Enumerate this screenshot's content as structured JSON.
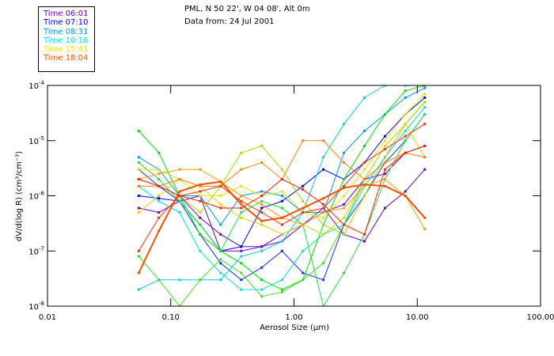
{
  "chart_data": {
    "type": "line",
    "title": "PML, N 50 22', W 04 08', Alt 0m",
    "subtitle": "Data from: 24 Jul 2001",
    "xlabel": "Aerosol Size (µm)",
    "ylabel": "dV/d(log R) (cm³/cm⁻³)",
    "xscale": "log",
    "yscale": "log",
    "xlim": [
      0.01,
      100
    ],
    "ylim": [
      1e-08,
      0.0001
    ],
    "xticks": [
      "0.01",
      "0.10",
      "1.00",
      "10.00",
      "100.00"
    ],
    "xtick_values": [
      0.01,
      0.1,
      1,
      10,
      100
    ],
    "yticks": [
      {
        "base": "10",
        "exp": "-4",
        "value": 0.0001
      },
      {
        "base": "10",
        "exp": "-5",
        "value": 1e-05
      },
      {
        "base": "10",
        "exp": "-6",
        "value": 1e-06
      },
      {
        "base": "10",
        "exp": "-7",
        "value": 1e-07
      },
      {
        "base": "10",
        "exp": "-8",
        "value": 1e-08
      }
    ],
    "legend_position": "top-left",
    "legend": [
      {
        "label": "Time 06:01",
        "color": "#6a00c8"
      },
      {
        "label": "Time 07:10",
        "color": "#0000ff"
      },
      {
        "label": "Time 08:31",
        "color": "#0096ff"
      },
      {
        "label": "Time 10:16",
        "color": "#00e6d2"
      },
      {
        "label": "Time 15:41",
        "color": "#f0e000"
      },
      {
        "label": "Time 18:04",
        "color": "#ff5000"
      }
    ],
    "x": [
      0.055,
      0.08,
      0.118,
      0.173,
      0.254,
      0.373,
      0.547,
      0.8,
      1.18,
      1.73,
      2.54,
      3.73,
      5.47,
      8.0,
      11.5
    ],
    "series": [
      {
        "color": "#6a00c8",
        "values": [
          2e-06,
          1.5e-06,
          1e-06,
          4e-07,
          2e-07,
          1.2e-07,
          1.2e-07,
          2e-07,
          3e-07,
          5e-07,
          7e-07,
          2e-06,
          2.5e-06,
          6e-06,
          8e-06
        ]
      },
      {
        "color": "#6a00c8",
        "values": [
          6e-07,
          5e-07,
          8e-07,
          1e-06,
          1e-07,
          1e-07,
          1.2e-07,
          1.5e-07,
          3e-07,
          6e-07,
          2e-07,
          1.5e-07,
          6e-07,
          1.2e-06,
          3e-06
        ]
      },
      {
        "color": "#0000ff",
        "values": [
          1e-06,
          9e-07,
          8e-07,
          3e-07,
          1e-07,
          1.2e-07,
          6e-07,
          8e-07,
          1.5e-06,
          3e-06,
          2e-06,
          4e-06,
          1.2e-05,
          3e-05,
          6e-05
        ]
      },
      {
        "color": "#1030ff",
        "values": [
          3e-06,
          1.5e-06,
          8e-07,
          2e-07,
          6e-08,
          3e-08,
          5e-08,
          1e-07,
          4e-08,
          3e-08,
          3e-07,
          1e-06,
          4e-06,
          1e-05,
          3e-05
        ]
      },
      {
        "color": "#0096ff",
        "values": [
          5e-06,
          3e-06,
          1e-06,
          1e-06,
          3e-07,
          1e-06,
          1.2e-06,
          1e-06,
          5e-07,
          5e-07,
          6e-06,
          1.5e-05,
          3e-05,
          6e-05,
          9e-05
        ]
      },
      {
        "color": "#00d0e6",
        "values": [
          2e-08,
          3e-08,
          3e-08,
          3e-08,
          3e-08,
          8e-08,
          1e-07,
          1.5e-07,
          5e-07,
          5e-06,
          2e-05,
          6e-05,
          0.0001,
          0.0001,
          0.0001
        ]
      },
      {
        "color": "#00e6d2",
        "values": [
          1.5e-06,
          8e-07,
          5e-07,
          1e-07,
          4e-08,
          2e-08,
          2e-08,
          3e-08,
          1e-07,
          2e-07,
          3e-07,
          1.5e-06,
          5e-06,
          1.5e-05,
          4e-05
        ]
      },
      {
        "color": "#00e000",
        "values": [
          1.5e-05,
          6e-06,
          1e-06,
          2e-07,
          1e-07,
          6e-08,
          3e-08,
          2e-08,
          3e-08,
          3e-07,
          2e-06,
          8e-06,
          3e-05,
          8e-05,
          0.0001
        ]
      },
      {
        "color": "#20e040",
        "values": [
          4e-06,
          2e-06,
          8e-07,
          3e-07,
          1e-07,
          5e-07,
          8e-07,
          6e-07,
          3e-07,
          1e-08,
          4e-08,
          2e-07,
          2e-06,
          1e-05,
          3e-05
        ]
      },
      {
        "color": "#40e020",
        "values": [
          8e-08,
          3e-08,
          1e-08,
          3e-08,
          7e-08,
          4e-08,
          1.5e-08,
          1.8e-08,
          3e-08,
          6e-08,
          3e-07,
          2e-06,
          8e-06,
          2e-05,
          5e-05
        ]
      },
      {
        "color": "#a0e000",
        "values": [
          2e-06,
          1.5e-06,
          1e-06,
          5e-07,
          1.5e-06,
          6e-06,
          8e-06,
          3e-06,
          8e-07,
          3e-07,
          2e-07,
          1e-06,
          5e-06,
          2e-05,
          5e-05
        ]
      },
      {
        "color": "#f0e000",
        "values": [
          3e-06,
          3e-06,
          2e-06,
          1e-06,
          1e-06,
          1.5e-06,
          1e-06,
          1.2e-06,
          5e-07,
          4e-07,
          1e-06,
          3e-06,
          1e-05,
          3e-05,
          7e-05
        ]
      },
      {
        "color": "#e0d000",
        "values": [
          5e-07,
          1e-06,
          2e-06,
          1.5e-06,
          7e-07,
          4e-07,
          3e-07,
          2e-07,
          3e-07,
          2e-07,
          4e-07,
          2e-06,
          8e-06,
          2e-05,
          5e-06
        ]
      },
      {
        "color": "#ff9a00",
        "values": [
          2e-06,
          2.5e-06,
          3e-06,
          3e-06,
          1.8e-06,
          1e-06,
          7e-07,
          4e-07,
          3e-07,
          5e-07,
          6e-07,
          1.5e-06,
          2e-06,
          1e-06,
          2.5e-07
        ]
      },
      {
        "color": "#ff8000",
        "values": [
          1.5e-06,
          1.5e-06,
          2e-06,
          1.5e-06,
          1.5e-06,
          3e-06,
          4e-06,
          2e-06,
          1e-05,
          1e-05,
          4e-06,
          2e-06,
          4e-06,
          6e-06,
          5e-06
        ]
      },
      {
        "color": "#ff5000",
        "thick": true,
        "values": [
          4e-08,
          2.3e-07,
          1.2e-06,
          1.6e-06,
          1.8e-06,
          7e-07,
          3.5e-07,
          4e-07,
          6e-07,
          9e-07,
          1.4e-06,
          1.6e-06,
          1.5e-06,
          1e-06,
          4e-07
        ]
      },
      {
        "color": "#ff3000",
        "values": [
          1e-07,
          4e-07,
          1e-06,
          1.2e-06,
          1.5e-06,
          8e-07,
          5e-07,
          3e-07,
          5e-07,
          6e-07,
          1.5e-06,
          4e-06,
          7e-06,
          1.2e-05,
          2e-05
        ]
      },
      {
        "color": "#ff2000",
        "values": [
          2e-06,
          1.5e-06,
          1e-06,
          8e-07,
          6e-07,
          6e-07,
          1e-06,
          2e-06,
          1.3e-06,
          7e-07,
          3e-07,
          2e-07,
          3e-06,
          6e-06,
          8e-06
        ]
      }
    ]
  }
}
